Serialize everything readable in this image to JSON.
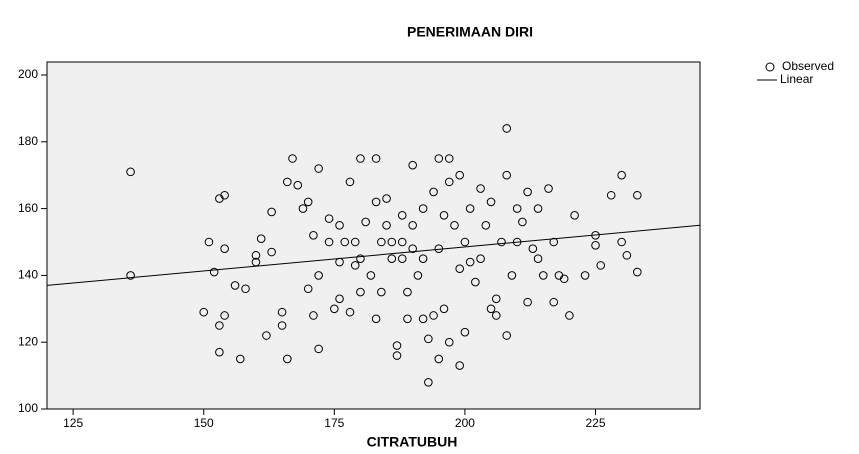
{
  "chart_data": {
    "type": "scatter",
    "title": "PENERIMAAN DIRI",
    "x_label": "CITRATUBUH",
    "series": [
      {
        "name": "Observed",
        "color": "#000000",
        "x": [
          136,
          136,
          153,
          153,
          153,
          154,
          157,
          167,
          172,
          180,
          183,
          190,
          195,
          197,
          208,
          193,
          199,
          230,
          233,
          233,
          231,
          225,
          225,
          220,
          217,
          216,
          212,
          150,
          151,
          152,
          154,
          154,
          158,
          160,
          161,
          162,
          163,
          165,
          166,
          166,
          168,
          170,
          170,
          171,
          172,
          174,
          175,
          176,
          177,
          178,
          179,
          180,
          181,
          182,
          183,
          184,
          185,
          186,
          187,
          188,
          189,
          190,
          191,
          192,
          193,
          194,
          195,
          196,
          197,
          198,
          199,
          200,
          201,
          202,
          203,
          204,
          205,
          206,
          207,
          208,
          208,
          209,
          210,
          211,
          212,
          213,
          214,
          215,
          218,
          219,
          221,
          223,
          226,
          228,
          230,
          178,
          183,
          187,
          192,
          195,
          197,
          200,
          205,
          185,
          188,
          190,
          192,
          186,
          184,
          179,
          176,
          174,
          171,
          169,
          163,
          156,
          199,
          203,
          196,
          201,
          188,
          176,
          180,
          189,
          194,
          206,
          160,
          165,
          172,
          210,
          214,
          217
        ],
        "values": [
          171,
          140,
          117,
          125,
          163,
          164,
          115,
          175,
          172,
          175,
          175,
          173,
          175,
          175,
          184,
          108,
          113,
          170,
          164,
          141,
          146,
          152,
          149,
          128,
          132,
          166,
          165,
          129,
          150,
          141,
          148,
          128,
          136,
          146,
          151,
          122,
          159,
          129,
          168,
          115,
          167,
          162,
          136,
          128,
          140,
          157,
          130,
          155,
          150,
          168,
          150,
          145,
          156,
          140,
          162,
          135,
          163,
          150,
          119,
          145,
          127,
          155,
          140,
          160,
          121,
          165,
          148,
          130,
          168,
          155,
          142,
          150,
          160,
          138,
          145,
          155,
          162,
          128,
          150,
          122,
          170,
          140,
          150,
          156,
          132,
          148,
          160,
          140,
          140,
          139,
          158,
          140,
          143,
          164,
          150,
          129,
          127,
          116,
          127,
          115,
          120,
          123,
          130,
          155,
          150,
          148,
          145,
          145,
          150,
          143,
          144,
          150,
          152,
          160,
          147,
          137,
          170,
          166,
          158,
          144,
          158,
          133,
          135,
          135,
          128,
          133,
          144,
          125,
          118,
          160,
          145,
          150
        ]
      },
      {
        "name": "Linear",
        "color": "#000000",
        "x": [
          120,
          245
        ],
        "values": [
          137,
          155
        ]
      }
    ],
    "xlim": [
      120,
      245
    ],
    "xticks": [
      125,
      150,
      175,
      200,
      225
    ],
    "ylim": [
      100,
      200
    ],
    "yticks": [
      100,
      120,
      140,
      160,
      180,
      200
    ]
  }
}
